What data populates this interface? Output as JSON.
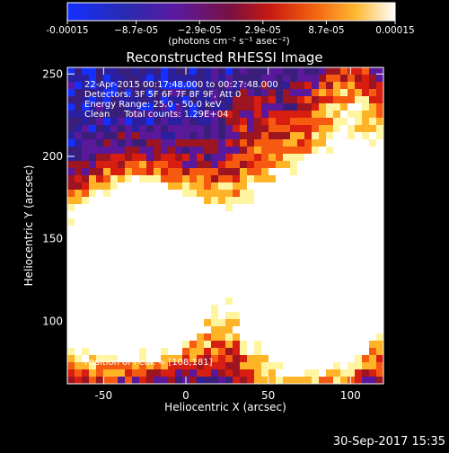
{
  "colorbar": {
    "tick_labels": [
      "-0.00015",
      "−8.7e-05",
      "−2.9e-05",
      "2.9e-05",
      "8.7e-05",
      "0.00015"
    ],
    "tick_values": [
      -0.00015,
      -8.7e-05,
      -2.9e-05,
      2.9e-05,
      8.7e-05,
      0.00015
    ],
    "range": [
      -0.00015,
      0.00015
    ],
    "unit_label": "(photons cm⁻² s⁻¹ asec⁻²)"
  },
  "chart_data": {
    "type": "heatmap",
    "title": "Reconstructed RHESSI Image",
    "xlabel": "Heliocentric X (arcsec)",
    "ylabel": "Heliocentric Y (arcsec)",
    "xlim": [
      -72,
      120
    ],
    "ylim": [
      62,
      254
    ],
    "x_ticks": [
      -50,
      0,
      50,
      100
    ],
    "y_ticks": [
      100,
      150,
      200,
      250
    ],
    "annotations": [
      "22-Apr-2015 00:17:48.000 to 00:27:48.000",
      "Detectors: 3F 5F 6F 7F 8F 9F, Att 0",
      "Energy Range: 25.0 - 50.0 keV",
      "Clean     Total counts: 1.29E+04"
    ],
    "peak_label": "Position of Peak = [108,181]",
    "peak": [
      108,
      181
    ],
    "colormap": [
      "#1430ff",
      "#2a1f9e",
      "#3a1f7a",
      "#5a189a",
      "#9d1520",
      "#d81e10",
      "#f65a10",
      "#ffb428",
      "#fff4a0",
      "#ffffff"
    ],
    "hotspots": [
      {
        "x": 108,
        "y": 181,
        "strength": 1.0,
        "radius": 28
      },
      {
        "x": 90,
        "y": 145,
        "strength": 0.95,
        "radius": 35
      },
      {
        "x": 55,
        "y": 150,
        "strength": 0.85,
        "radius": 30
      },
      {
        "x": -25,
        "y": 155,
        "strength": 0.9,
        "radius": 28
      },
      {
        "x": -5,
        "y": 140,
        "strength": 0.85,
        "radius": 25
      },
      {
        "x": -50,
        "y": 150,
        "strength": 0.8,
        "radius": 25
      },
      {
        "x": -35,
        "y": 115,
        "strength": 0.85,
        "radius": 28
      },
      {
        "x": 90,
        "y": 100,
        "strength": 0.9,
        "radius": 28
      },
      {
        "x": 60,
        "y": 90,
        "strength": 0.75,
        "radius": 25
      },
      {
        "x": -60,
        "y": 90,
        "strength": 0.7,
        "radius": 22
      },
      {
        "x": -10,
        "y": 95,
        "strength": 0.6,
        "radius": 18
      },
      {
        "x": 100,
        "y": 235,
        "strength": 0.55,
        "radius": 20
      },
      {
        "x": 40,
        "y": 220,
        "strength": 0.3,
        "radius": 18
      }
    ]
  },
  "footer": {
    "timestamp": "30-Sep-2017 15:35"
  }
}
